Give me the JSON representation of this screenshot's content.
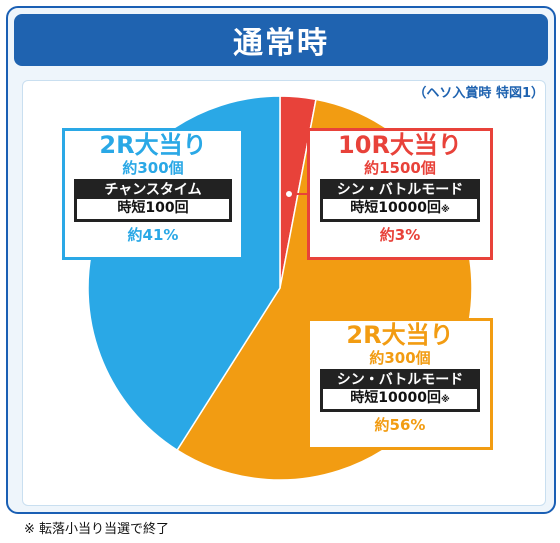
{
  "header": {
    "title": "通常時"
  },
  "subtitle": "（ヘソ入賞時 特図1）",
  "footnote": "※ 転落小当り当選で終了",
  "colors": {
    "blue": "#2aa8e6",
    "orange": "#f29c12",
    "red": "#e8423a",
    "header": "#1f63b0"
  },
  "chart_data": {
    "type": "pie",
    "title": "通常時",
    "slices": [
      {
        "label": "10R大当り",
        "count": "約1500個",
        "mode": "シン・バトルモード",
        "short": "時短10000回",
        "mark": "※",
        "value": 3,
        "pct_label": "約3%",
        "color": "#e8423a"
      },
      {
        "label": "2R大当り",
        "count": "約300個",
        "mode": "シン・バトルモード",
        "short": "時短10000回",
        "mark": "※",
        "value": 56,
        "pct_label": "約56%",
        "color": "#f29c12"
      },
      {
        "label": "2R大当り",
        "count": "約300個",
        "mode": "チャンスタイム",
        "short": "時短100回",
        "mark": "",
        "value": 41,
        "pct_label": "約41%",
        "color": "#2aa8e6"
      }
    ]
  }
}
